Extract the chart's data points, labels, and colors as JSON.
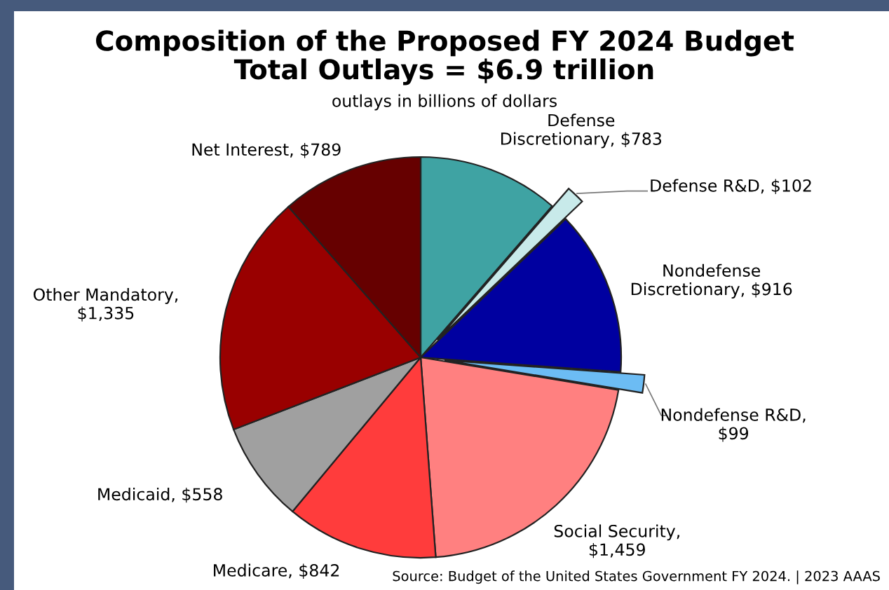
{
  "chart_data": {
    "type": "pie",
    "title": "Composition of the Proposed FY 2024 Budget\nTotal Outlays = $6.9 trillion",
    "subtitle": "outlays in billions of dollars",
    "categories": [
      "Defense Discretionary, $783",
      "Defense R&D, $102",
      "Nondefense Discretionary, $916",
      "Nondefense R&D, $99",
      "Social Security, $1,459",
      "Medicare, $842",
      "Medicaid, $558",
      "Other Mandatory, $1,335",
      "Net Interest, $789"
    ],
    "values": [
      783,
      102,
      916,
      99,
      1459,
      842,
      558,
      1335,
      789
    ],
    "colors": [
      "#3fa3a3",
      "#c8eaea",
      "#0000a0",
      "#6cbcf4",
      "#ff8080",
      "#ff3c3c",
      "#a0a0a0",
      "#990000",
      "#660000"
    ],
    "annotations": [
      "Source: Budget of the United States Government FY 2024. | 2023 AAAS"
    ]
  }
}
